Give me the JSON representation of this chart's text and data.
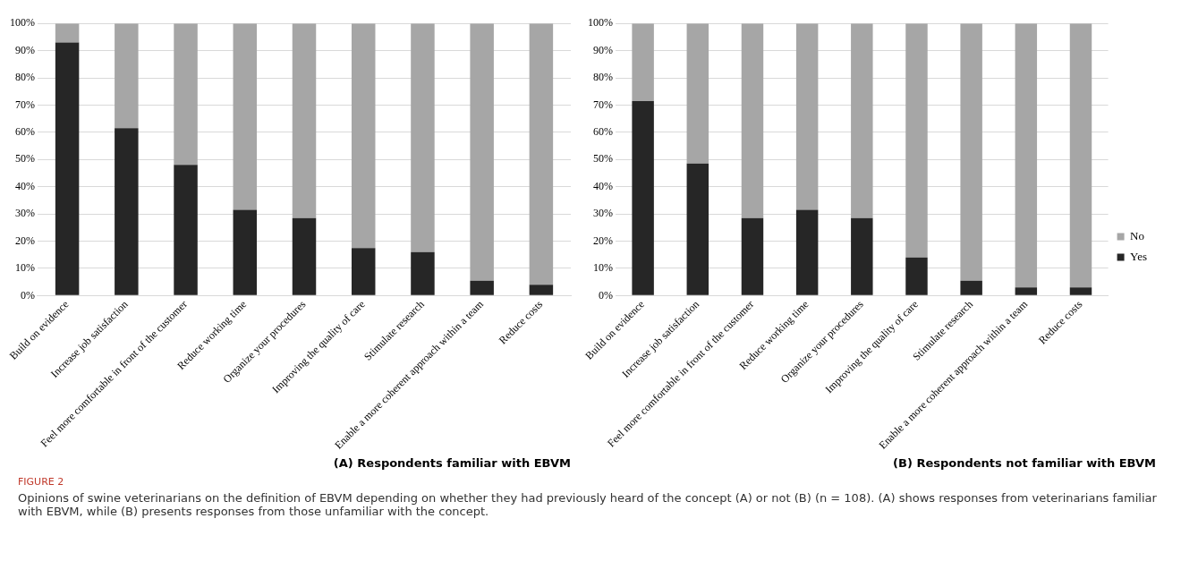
{
  "chart_data": [
    {
      "type": "bar",
      "title": "(A) Respondents familiar with EBVM",
      "stacked": true,
      "grid": "y",
      "legend": false,
      "categories": [
        "Build on evidence",
        "Increase job satisfaction",
        "Feel more comfortable in front of the customer",
        "Reduce working time",
        "Organize your procedures",
        "Improving the quality of care",
        "Stimulate research",
        "Enable a more coherent approach within a team",
        "Reduce costs"
      ],
      "series": [
        {
          "color": "#262626",
          "values": [
            93,
            61.5,
            48,
            31.5,
            28.5,
            17.5,
            16,
            5.5,
            4
          ]
        },
        {
          "color": "#a6a6a6",
          "values": [
            7,
            38.5,
            52,
            68.5,
            71.5,
            82.5,
            84,
            94.5,
            96
          ]
        }
      ],
      "ylim": [
        0,
        100
      ],
      "yticks": [
        {
          "value": 0,
          "label": "0%"
        },
        {
          "value": 10,
          "label": "10%"
        },
        {
          "value": 20,
          "label": "20%"
        },
        {
          "value": 30,
          "label": "30%"
        },
        {
          "value": 40,
          "label": "40%"
        },
        {
          "value": 50,
          "label": "50%"
        },
        {
          "value": 60,
          "label": "60%"
        },
        {
          "value": 70,
          "label": "70%"
        },
        {
          "value": 80,
          "label": "80%"
        },
        {
          "value": 90,
          "label": "90%"
        },
        {
          "value": 100,
          "label": "100%"
        }
      ],
      "annotations": [
        "FIGURE 2",
        "Opinions of swine veterinarians on the definition of EBVM depending on whether they had previously heard of the concept (A) or not (B) (n = 108). (A) shows responses from veterinarians familiar with EBVM, while (B) presents responses from those unfamiliar with the concept."
      ]
    },
    {
      "type": "bar",
      "title": "(B) Respondents not familiar with EBVM",
      "stacked": true,
      "grid": "y",
      "legend": "right",
      "categories": [
        "Build on evidence",
        "Increase job satisfaction",
        "Feel more comfortable in front of the customer",
        "Reduce working time",
        "Organize your procedures",
        "Improving the quality of care",
        "Stimulate research",
        "Enable a more coherent approach within a team",
        "Reduce costs"
      ],
      "series": [
        {
          "name": "Yes",
          "color": "#262626",
          "values": [
            71.5,
            48.5,
            28.5,
            31.5,
            28.5,
            14,
            5.5,
            3,
            3
          ]
        },
        {
          "name": "No",
          "color": "#a6a6a6",
          "values": [
            28.5,
            51.5,
            71.5,
            68.5,
            71.5,
            86,
            94.5,
            97,
            97
          ]
        }
      ],
      "ylim": [
        0,
        100
      ],
      "yticks": [
        {
          "value": 0,
          "label": "0%"
        },
        {
          "value": 10,
          "label": "10%"
        },
        {
          "value": 20,
          "label": "20%"
        },
        {
          "value": 30,
          "label": "30%"
        },
        {
          "value": 40,
          "label": "40%"
        },
        {
          "value": 50,
          "label": "50%"
        },
        {
          "value": 60,
          "label": "60%"
        },
        {
          "value": 70,
          "label": "70%"
        },
        {
          "value": 80,
          "label": "80%"
        },
        {
          "value": 90,
          "label": "90%"
        },
        {
          "value": 100,
          "label": "100%"
        }
      ]
    }
  ]
}
